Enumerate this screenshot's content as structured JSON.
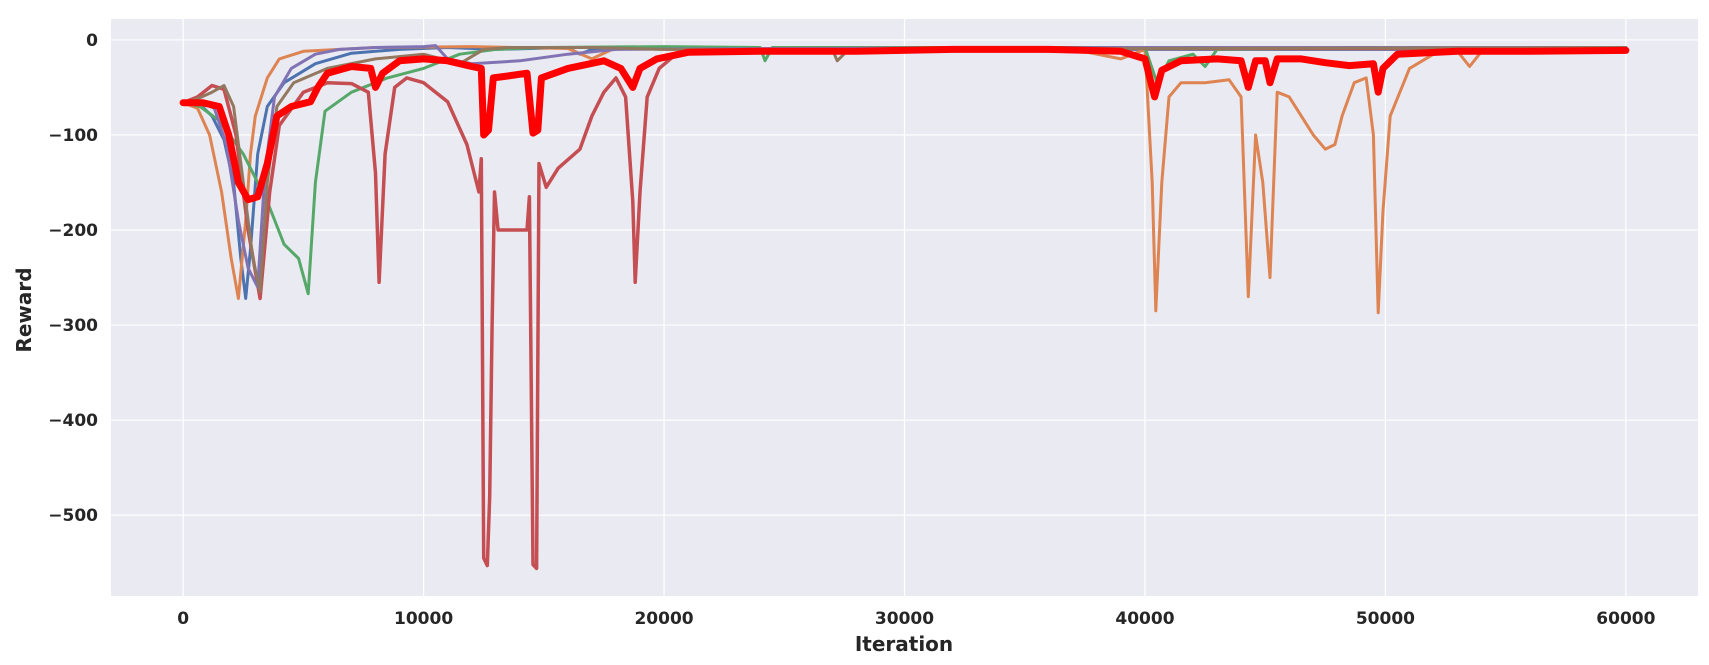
{
  "chart_data": {
    "type": "line",
    "title": "",
    "xlabel": "Iteration",
    "ylabel": "Reward",
    "xlim": [
      -3000,
      63000
    ],
    "ylim": [
      -585,
      22
    ],
    "grid": true,
    "legend": "none",
    "xticks": [
      {
        "value": 0,
        "label": "0"
      },
      {
        "value": 10000,
        "label": "10000"
      },
      {
        "value": 20000,
        "label": "20000"
      },
      {
        "value": 30000,
        "label": "30000"
      },
      {
        "value": 40000,
        "label": "40000"
      },
      {
        "value": 50000,
        "label": "50000"
      },
      {
        "value": 60000,
        "label": "60000"
      }
    ],
    "yticks": [
      {
        "value": 0,
        "label": "0"
      },
      {
        "value": -100,
        "label": "−100"
      },
      {
        "value": -200,
        "label": "−200"
      },
      {
        "value": -300,
        "label": "−300"
      },
      {
        "value": -400,
        "label": "−400"
      },
      {
        "value": -500,
        "label": "−500"
      }
    ],
    "series": [
      {
        "color": "#4c72b0",
        "width": 3,
        "points": [
          [
            0,
            -66
          ],
          [
            700,
            -68
          ],
          [
            1200,
            -80
          ],
          [
            1700,
            -105
          ],
          [
            2100,
            -150
          ],
          [
            2400,
            -230
          ],
          [
            2600,
            -272
          ],
          [
            2800,
            -220
          ],
          [
            3100,
            -120
          ],
          [
            3500,
            -70
          ],
          [
            4200,
            -45
          ],
          [
            5500,
            -25
          ],
          [
            7000,
            -14
          ],
          [
            9000,
            -10
          ],
          [
            11000,
            -8
          ],
          [
            13000,
            -10
          ],
          [
            16000,
            -8
          ],
          [
            16500,
            -15
          ],
          [
            17000,
            -10
          ],
          [
            20000,
            -9
          ],
          [
            25000,
            -10
          ],
          [
            30000,
            -10
          ],
          [
            40000,
            -10
          ],
          [
            50000,
            -10
          ],
          [
            60000,
            -10
          ]
        ]
      },
      {
        "color": "#dd8452",
        "width": 3,
        "points": [
          [
            0,
            -66
          ],
          [
            600,
            -72
          ],
          [
            1100,
            -100
          ],
          [
            1600,
            -160
          ],
          [
            2000,
            -230
          ],
          [
            2300,
            -272
          ],
          [
            2600,
            -190
          ],
          [
            2800,
            -120
          ],
          [
            3000,
            -80
          ],
          [
            3500,
            -40
          ],
          [
            4000,
            -20
          ],
          [
            5000,
            -12
          ],
          [
            8000,
            -8
          ],
          [
            12000,
            -7
          ],
          [
            16000,
            -9
          ],
          [
            17000,
            -20
          ],
          [
            18000,
            -8
          ],
          [
            20000,
            -10
          ],
          [
            25000,
            -10
          ],
          [
            30000,
            -10
          ],
          [
            37000,
            -10
          ],
          [
            39000,
            -20
          ],
          [
            40000,
            -10
          ],
          [
            40300,
            -150
          ],
          [
            40450,
            -285
          ],
          [
            40700,
            -150
          ],
          [
            41000,
            -60
          ],
          [
            41500,
            -45
          ],
          [
            42500,
            -45
          ],
          [
            43500,
            -42
          ],
          [
            44000,
            -60
          ],
          [
            44300,
            -270
          ],
          [
            44600,
            -100
          ],
          [
            44900,
            -150
          ],
          [
            45200,
            -250
          ],
          [
            45500,
            -55
          ],
          [
            46000,
            -60
          ],
          [
            47000,
            -100
          ],
          [
            47500,
            -115
          ],
          [
            47900,
            -110
          ],
          [
            48200,
            -80
          ],
          [
            48700,
            -45
          ],
          [
            49200,
            -40
          ],
          [
            49500,
            -100
          ],
          [
            49700,
            -287
          ],
          [
            49900,
            -180
          ],
          [
            50200,
            -80
          ],
          [
            51000,
            -30
          ],
          [
            52000,
            -15
          ],
          [
            53000,
            -12
          ],
          [
            53500,
            -28
          ],
          [
            54000,
            -12
          ],
          [
            56000,
            -10
          ],
          [
            58000,
            -12
          ],
          [
            60000,
            -11
          ]
        ]
      },
      {
        "color": "#55a868",
        "width": 3,
        "points": [
          [
            0,
            -66
          ],
          [
            700,
            -70
          ],
          [
            1500,
            -85
          ],
          [
            2500,
            -120
          ],
          [
            3500,
            -170
          ],
          [
            4200,
            -215
          ],
          [
            4800,
            -230
          ],
          [
            5200,
            -267
          ],
          [
            5500,
            -150
          ],
          [
            5900,
            -75
          ],
          [
            7000,
            -55
          ],
          [
            8500,
            -40
          ],
          [
            10000,
            -30
          ],
          [
            11500,
            -15
          ],
          [
            13000,
            -10
          ],
          [
            15000,
            -8
          ],
          [
            20000,
            -7
          ],
          [
            24000,
            -8
          ],
          [
            24200,
            -22
          ],
          [
            24500,
            -8
          ],
          [
            30000,
            -8
          ],
          [
            35000,
            -8
          ],
          [
            40000,
            -8
          ],
          [
            40500,
            -45
          ],
          [
            41000,
            -22
          ],
          [
            42000,
            -15
          ],
          [
            42500,
            -28
          ],
          [
            43000,
            -10
          ],
          [
            50000,
            -8
          ],
          [
            60000,
            -8
          ]
        ]
      },
      {
        "color": "#c44e52",
        "width": 3.5,
        "points": [
          [
            0,
            -66
          ],
          [
            600,
            -60
          ],
          [
            1200,
            -48
          ],
          [
            1700,
            -52
          ],
          [
            2200,
            -100
          ],
          [
            2700,
            -200
          ],
          [
            3200,
            -272
          ],
          [
            3600,
            -160
          ],
          [
            4000,
            -90
          ],
          [
            5000,
            -55
          ],
          [
            6000,
            -45
          ],
          [
            7000,
            -46
          ],
          [
            7700,
            -55
          ],
          [
            8000,
            -140
          ],
          [
            8150,
            -255
          ],
          [
            8400,
            -120
          ],
          [
            8800,
            -50
          ],
          [
            9300,
            -40
          ],
          [
            10000,
            -45
          ],
          [
            11000,
            -65
          ],
          [
            11800,
            -110
          ],
          [
            12200,
            -150
          ],
          [
            12300,
            -160
          ],
          [
            12400,
            -125
          ],
          [
            12500,
            -545
          ],
          [
            12650,
            -553
          ],
          [
            12750,
            -480
          ],
          [
            12850,
            -300
          ],
          [
            12950,
            -160
          ],
          [
            13100,
            -200
          ],
          [
            14300,
            -200
          ],
          [
            14400,
            -165
          ],
          [
            14550,
            -552
          ],
          [
            14700,
            -556
          ],
          [
            14800,
            -130
          ],
          [
            15100,
            -155
          ],
          [
            15600,
            -135
          ],
          [
            16500,
            -115
          ],
          [
            17000,
            -80
          ],
          [
            17500,
            -55
          ],
          [
            18000,
            -40
          ],
          [
            18400,
            -60
          ],
          [
            18700,
            -170
          ],
          [
            18800,
            -255
          ],
          [
            19000,
            -160
          ],
          [
            19300,
            -60
          ],
          [
            19800,
            -30
          ],
          [
            20500,
            -15
          ],
          [
            21000,
            -10
          ],
          [
            30000,
            -9
          ],
          [
            60000,
            -9
          ]
        ]
      },
      {
        "color": "#8172b3",
        "width": 3,
        "points": [
          [
            0,
            -66
          ],
          [
            700,
            -65
          ],
          [
            1300,
            -72
          ],
          [
            1800,
            -110
          ],
          [
            2300,
            -190
          ],
          [
            2700,
            -240
          ],
          [
            3100,
            -260
          ],
          [
            3400,
            -140
          ],
          [
            3800,
            -60
          ],
          [
            4500,
            -30
          ],
          [
            5500,
            -15
          ],
          [
            6500,
            -10
          ],
          [
            8000,
            -8
          ],
          [
            10000,
            -7
          ],
          [
            10500,
            -6
          ],
          [
            11000,
            -20
          ],
          [
            12000,
            -25
          ],
          [
            14000,
            -22
          ],
          [
            16000,
            -15
          ],
          [
            18000,
            -10
          ],
          [
            25000,
            -9
          ],
          [
            40000,
            -8
          ],
          [
            60000,
            -8
          ]
        ]
      },
      {
        "color": "#937860",
        "width": 3,
        "points": [
          [
            0,
            -66
          ],
          [
            600,
            -62
          ],
          [
            1200,
            -55
          ],
          [
            1700,
            -48
          ],
          [
            2100,
            -70
          ],
          [
            2500,
            -150
          ],
          [
            2900,
            -230
          ],
          [
            3200,
            -265
          ],
          [
            3500,
            -150
          ],
          [
            3900,
            -70
          ],
          [
            4600,
            -45
          ],
          [
            6000,
            -30
          ],
          [
            8000,
            -20
          ],
          [
            10000,
            -15
          ],
          [
            11500,
            -25
          ],
          [
            12500,
            -10
          ],
          [
            13500,
            -8
          ],
          [
            15000,
            -8
          ],
          [
            17000,
            -8
          ],
          [
            20000,
            -10
          ],
          [
            23000,
            -10
          ],
          [
            27000,
            -10
          ],
          [
            27200,
            -22
          ],
          [
            27600,
            -12
          ],
          [
            30000,
            -9
          ],
          [
            40000,
            -9
          ],
          [
            60000,
            -8
          ]
        ]
      },
      {
        "color": "#ff0000",
        "width": 7,
        "points": [
          [
            0,
            -66
          ],
          [
            800,
            -66
          ],
          [
            1500,
            -70
          ],
          [
            1900,
            -100
          ],
          [
            2300,
            -150
          ],
          [
            2700,
            -168
          ],
          [
            3100,
            -165
          ],
          [
            3500,
            -130
          ],
          [
            3900,
            -80
          ],
          [
            4500,
            -70
          ],
          [
            5300,
            -65
          ],
          [
            5600,
            -50
          ],
          [
            6000,
            -35
          ],
          [
            7000,
            -28
          ],
          [
            7800,
            -30
          ],
          [
            8000,
            -50
          ],
          [
            8300,
            -35
          ],
          [
            9000,
            -22
          ],
          [
            10000,
            -20
          ],
          [
            11000,
            -22
          ],
          [
            12000,
            -28
          ],
          [
            12400,
            -30
          ],
          [
            12500,
            -100
          ],
          [
            12700,
            -95
          ],
          [
            12900,
            -40
          ],
          [
            13500,
            -38
          ],
          [
            14300,
            -35
          ],
          [
            14550,
            -98
          ],
          [
            14750,
            -95
          ],
          [
            14900,
            -40
          ],
          [
            16000,
            -30
          ],
          [
            17500,
            -22
          ],
          [
            18200,
            -30
          ],
          [
            18700,
            -50
          ],
          [
            19000,
            -30
          ],
          [
            19700,
            -20
          ],
          [
            21000,
            -13
          ],
          [
            24000,
            -12
          ],
          [
            28000,
            -12
          ],
          [
            32000,
            -10
          ],
          [
            36000,
            -10
          ],
          [
            39000,
            -12
          ],
          [
            40000,
            -20
          ],
          [
            40400,
            -60
          ],
          [
            40700,
            -32
          ],
          [
            41500,
            -22
          ],
          [
            43000,
            -20
          ],
          [
            44000,
            -22
          ],
          [
            44300,
            -50
          ],
          [
            44600,
            -22
          ],
          [
            45000,
            -22
          ],
          [
            45200,
            -45
          ],
          [
            45500,
            -20
          ],
          [
            46500,
            -20
          ],
          [
            47500,
            -24
          ],
          [
            48500,
            -27
          ],
          [
            49500,
            -25
          ],
          [
            49700,
            -55
          ],
          [
            49900,
            -30
          ],
          [
            50500,
            -15
          ],
          [
            53000,
            -12
          ],
          [
            56000,
            -12
          ],
          [
            60000,
            -11
          ]
        ]
      }
    ]
  }
}
